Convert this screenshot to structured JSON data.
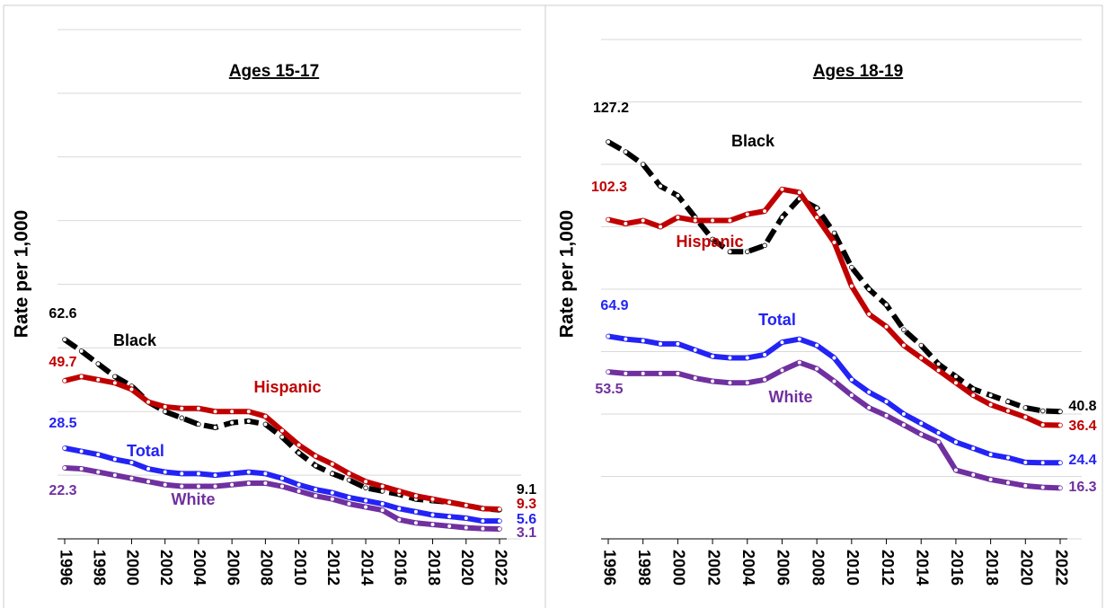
{
  "chart_data": [
    {
      "type": "line",
      "title": "Ages 15-17",
      "y_label": "Rate per 1,000",
      "x": [
        1996,
        1997,
        1998,
        1999,
        2000,
        2001,
        2002,
        2003,
        2004,
        2005,
        2006,
        2007,
        2008,
        2009,
        2010,
        2011,
        2012,
        2013,
        2014,
        2015,
        2016,
        2017,
        2018,
        2019,
        2020,
        2021,
        2022
      ],
      "xlim": [
        1996,
        2022
      ],
      "xticks": [
        1996,
        1998,
        2000,
        2002,
        2004,
        2006,
        2008,
        2010,
        2012,
        2014,
        2016,
        2018,
        2020,
        2022
      ],
      "ylim": [
        0,
        160
      ],
      "yticks": [
        0,
        20,
        40,
        60,
        80,
        100,
        120,
        140,
        160
      ],
      "grid": true,
      "series": [
        {
          "name": "Black",
          "color": "#000000",
          "dashed": true,
          "values": [
            62.6,
            59,
            55,
            51,
            48,
            43,
            40,
            38,
            36,
            35,
            36.5,
            37,
            36,
            32,
            27,
            23,
            20.5,
            18.5,
            16,
            15,
            14,
            12.5,
            12,
            11.5,
            10.5,
            9.5,
            9.1
          ]
        },
        {
          "name": "Hispanic",
          "color": "#c00000",
          "dashed": false,
          "values": [
            49.7,
            51,
            50,
            49,
            47,
            43,
            41.5,
            41,
            41,
            40,
            40,
            40,
            38.5,
            34,
            29.5,
            26,
            23.5,
            20.5,
            18,
            16.5,
            15,
            13.5,
            12.5,
            11.5,
            10.5,
            9.5,
            9.3
          ]
        },
        {
          "name": "Total",
          "color": "#2323f5",
          "dashed": false,
          "values": [
            28.5,
            27.5,
            26.5,
            25,
            24,
            22,
            21,
            20.5,
            20.5,
            20,
            20.5,
            21,
            20.5,
            19,
            17,
            15.5,
            14.5,
            13,
            12,
            11,
            9.5,
            8.5,
            7.5,
            7,
            6.5,
            5.6,
            5.6
          ]
        },
        {
          "name": "White",
          "color": "#7030a0",
          "dashed": false,
          "values": [
            22.3,
            22,
            21,
            20,
            19,
            18,
            17,
            16.5,
            16.5,
            16.5,
            17,
            17.5,
            17.5,
            16.5,
            15,
            13.5,
            12.5,
            11,
            10,
            9,
            6,
            5,
            4.5,
            4,
            3.5,
            3.2,
            3.1
          ]
        }
      ]
    },
    {
      "type": "line",
      "title": "Ages 18-19",
      "y_label": "Rate per 1,000",
      "x": [
        1996,
        1997,
        1998,
        1999,
        2000,
        2001,
        2002,
        2003,
        2004,
        2005,
        2006,
        2007,
        2008,
        2009,
        2010,
        2011,
        2012,
        2013,
        2014,
        2015,
        2016,
        2017,
        2018,
        2019,
        2020,
        2021,
        2022
      ],
      "xlim": [
        1996,
        2022
      ],
      "xticks": [
        1996,
        1998,
        2000,
        2002,
        2004,
        2006,
        2008,
        2010,
        2012,
        2014,
        2016,
        2018,
        2020,
        2022
      ],
      "ylim": [
        0,
        160
      ],
      "yticks": [
        0,
        20,
        40,
        60,
        80,
        100,
        120,
        140,
        160
      ],
      "grid": true,
      "series": [
        {
          "name": "Black",
          "color": "#000000",
          "dashed": true,
          "values": [
            127.2,
            124,
            120,
            113,
            110,
            103,
            96,
            92,
            92,
            94,
            103,
            109,
            106,
            98,
            87,
            80,
            75,
            67,
            62,
            56,
            52,
            48,
            46,
            44,
            42,
            41,
            40.8
          ]
        },
        {
          "name": "Hispanic",
          "color": "#c00000",
          "dashed": false,
          "values": [
            102.3,
            101,
            102,
            100,
            103,
            102,
            102,
            102,
            104,
            105,
            112,
            111,
            103,
            95,
            81,
            72,
            68,
            62,
            58,
            54,
            50,
            46,
            43,
            41,
            39,
            36.5,
            36.4
          ]
        },
        {
          "name": "Total",
          "color": "#2323f5",
          "dashed": false,
          "values": [
            64.9,
            64,
            63.5,
            62.5,
            62.5,
            60.5,
            58.5,
            58,
            58,
            59,
            63,
            64,
            62,
            58,
            51,
            47,
            44,
            40,
            37,
            34,
            31,
            29,
            27,
            26,
            24.5,
            24.4,
            24.4
          ]
        },
        {
          "name": "White",
          "color": "#7030a0",
          "dashed": false,
          "values": [
            53.5,
            53,
            53,
            53,
            53,
            51.5,
            50.5,
            50,
            50,
            51,
            54,
            56.5,
            54.5,
            50.5,
            46,
            42,
            39.5,
            36.5,
            33.5,
            31,
            22,
            20.5,
            19,
            18,
            17,
            16.5,
            16.3
          ]
        }
      ]
    }
  ]
}
